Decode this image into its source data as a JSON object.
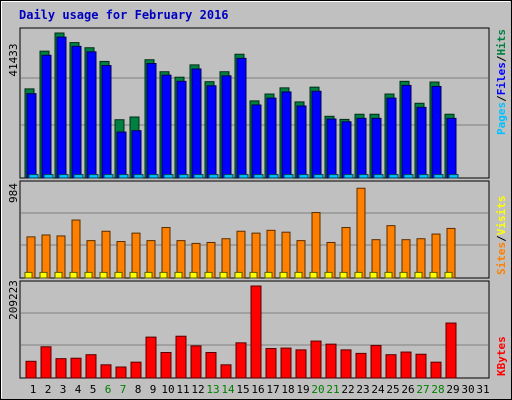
{
  "chart_data": [
    {
      "type": "bar",
      "title": "Daily usage for February 2016",
      "ymax_label": "41433",
      "legend": [
        "Pages",
        "Files",
        "Hits"
      ],
      "colors": {
        "hits": "#008040",
        "files": "#0000ff",
        "pages": "#00c0ff"
      },
      "categories": [
        "1",
        "2",
        "3",
        "4",
        "5",
        "6",
        "7",
        "8",
        "9",
        "10",
        "11",
        "12",
        "13",
        "14",
        "15",
        "16",
        "17",
        "18",
        "19",
        "20",
        "21",
        "22",
        "23",
        "24",
        "25",
        "26",
        "27",
        "28",
        "29",
        "30",
        "31"
      ],
      "series": [
        {
          "name": "Hits",
          "values": [
            26000,
            37000,
            42300,
            39500,
            38000,
            34000,
            17000,
            17800,
            34500,
            31000,
            29400,
            33000,
            28100,
            31000,
            36100,
            22500,
            24500,
            26300,
            22200,
            26500,
            18000,
            17100,
            18600,
            18600,
            24500,
            28200,
            21800,
            28000,
            18600,
            0,
            0
          ]
        },
        {
          "name": "Files",
          "values": [
            24600,
            35800,
            41100,
            38400,
            36800,
            32800,
            13400,
            13800,
            33400,
            30000,
            28200,
            31800,
            26900,
            29800,
            34900,
            21300,
            23300,
            25100,
            21000,
            25300,
            17200,
            16400,
            17400,
            17400,
            23300,
            27000,
            20600,
            26700,
            17400,
            0,
            0
          ]
        },
        {
          "name": "Pages",
          "values": [
            1000,
            1000,
            1000,
            1000,
            1000,
            1000,
            1000,
            1000,
            1000,
            1000,
            1000,
            1000,
            1000,
            1000,
            1000,
            1000,
            1000,
            1000,
            1000,
            1000,
            1000,
            1000,
            1000,
            1000,
            1000,
            1000,
            1000,
            1000,
            1000,
            0,
            0
          ]
        }
      ]
    },
    {
      "type": "bar",
      "ymax_label": "984",
      "legend": [
        "Sites",
        "Visits"
      ],
      "colors": {
        "visits": "#ff8000",
        "sites": "#ffff00"
      },
      "categories": [
        "1",
        "2",
        "3",
        "4",
        "5",
        "6",
        "7",
        "8",
        "9",
        "10",
        "11",
        "12",
        "13",
        "14",
        "15",
        "16",
        "17",
        "18",
        "19",
        "20",
        "21",
        "22",
        "23",
        "24",
        "25",
        "26",
        "27",
        "28",
        "29",
        "30",
        "31"
      ],
      "series": [
        {
          "name": "Visits",
          "values": [
            440,
            460,
            450,
            620,
            400,
            500,
            390,
            480,
            400,
            540,
            400,
            370,
            380,
            420,
            500,
            480,
            510,
            490,
            400,
            700,
            380,
            540,
            960,
            410,
            560,
            410,
            420,
            470,
            530,
            0,
            0
          ]
        },
        {
          "name": "Sites",
          "values": [
            60,
            60,
            60,
            60,
            60,
            60,
            60,
            60,
            60,
            60,
            60,
            60,
            60,
            60,
            60,
            60,
            60,
            60,
            60,
            60,
            60,
            60,
            60,
            60,
            60,
            60,
            60,
            60,
            60,
            0,
            0
          ]
        }
      ]
    },
    {
      "type": "bar",
      "ymax_label": "209223",
      "legend": [
        "KBytes"
      ],
      "colors": {
        "kbytes": "#ff0000"
      },
      "categories": [
        "1",
        "2",
        "3",
        "4",
        "5",
        "6",
        "7",
        "8",
        "9",
        "10",
        "11",
        "12",
        "13",
        "14",
        "15",
        "16",
        "17",
        "18",
        "19",
        "20",
        "21",
        "22",
        "23",
        "24",
        "25",
        "26",
        "27",
        "28",
        "29",
        "30",
        "31"
      ],
      "series": [
        {
          "name": "KBytes",
          "values": [
            38000,
            71000,
            44000,
            45000,
            53000,
            30000,
            25000,
            36000,
            93000,
            58000,
            95000,
            73000,
            58000,
            30000,
            80000,
            209223,
            67000,
            68000,
            64000,
            84000,
            77000,
            64000,
            56000,
            74000,
            53000,
            59000,
            54000,
            36000,
            125000,
            0,
            0
          ]
        }
      ]
    }
  ],
  "x_label_colors": {
    "weekday": "#000000",
    "weekend": "#008000"
  },
  "weekend_days": [
    "6",
    "7",
    "13",
    "14",
    "20",
    "21",
    "27",
    "28"
  ]
}
